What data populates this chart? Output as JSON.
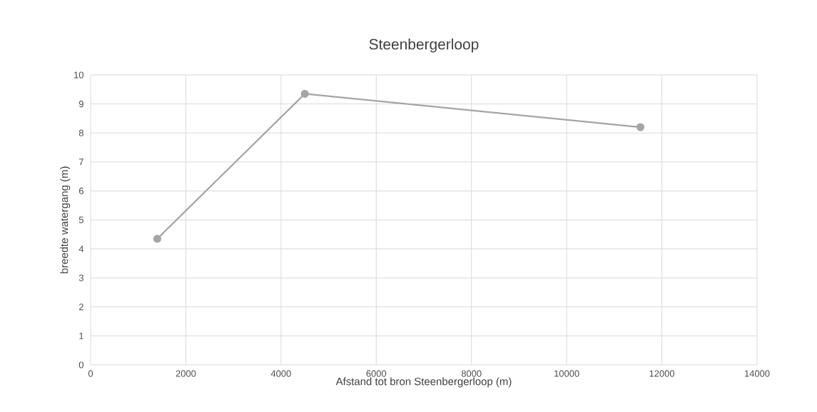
{
  "chart_data": {
    "type": "line",
    "title": "Steenbergerloop",
    "xlabel": "Afstand tot bron Steenbergerloop (m)",
    "ylabel": "breedte watergang (m)",
    "x": [
      1400,
      4500,
      11550
    ],
    "series": [
      {
        "color": "#a5a5a5",
        "values": [
          4.35,
          9.35,
          8.2
        ]
      }
    ],
    "xlim": [
      0,
      14000
    ],
    "ylim": [
      0,
      10
    ],
    "xticks": [
      0,
      2000,
      4000,
      6000,
      8000,
      10000,
      12000,
      14000
    ],
    "yticks": [
      0,
      1,
      2,
      3,
      4,
      5,
      6,
      7,
      8,
      9,
      10
    ],
    "grid": true,
    "marker": "circle",
    "line_style": "solid"
  }
}
